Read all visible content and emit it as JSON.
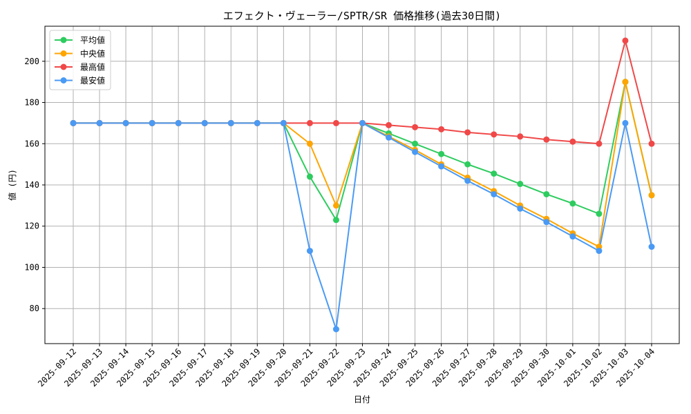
{
  "chart_data": {
    "type": "line",
    "title": "エフェクト・ヴェーラー/SPTR/SR 価格推移(過去30日間)",
    "xlabel": "日付",
    "ylabel": "値 (円)",
    "ylim": [
      63,
      217
    ],
    "yticks": [
      80,
      100,
      120,
      140,
      160,
      180,
      200
    ],
    "grid": true,
    "legend_position": "top-left",
    "categories": [
      "2025-09-12",
      "2025-09-13",
      "2025-09-14",
      "2025-09-15",
      "2025-09-16",
      "2025-09-17",
      "2025-09-18",
      "2025-09-19",
      "2025-09-20",
      "2025-09-21",
      "2025-09-22",
      "2025-09-23",
      "2025-09-24",
      "2025-09-25",
      "2025-09-26",
      "2025-09-27",
      "2025-09-28",
      "2025-09-29",
      "2025-09-30",
      "2025-10-01",
      "2025-10-02",
      "2025-10-03",
      "2025-10-04"
    ],
    "series": [
      {
        "name": "平均値",
        "color": "#2ecc5f",
        "values": [
          170,
          170,
          170,
          170,
          170,
          170,
          170,
          170,
          170,
          144,
          123,
          170,
          165,
          160,
          155,
          150,
          145.5,
          140.5,
          135.5,
          131,
          126,
          190,
          135
        ]
      },
      {
        "name": "中央値",
        "color": "#ffa500",
        "values": [
          170,
          170,
          170,
          170,
          170,
          170,
          170,
          170,
          170,
          160,
          130,
          170,
          163.5,
          157,
          150,
          143.5,
          137,
          130,
          123.5,
          116.5,
          110,
          190,
          135
        ]
      },
      {
        "name": "最高値",
        "color": "#f04848",
        "values": [
          170,
          170,
          170,
          170,
          170,
          170,
          170,
          170,
          170,
          170,
          170,
          170,
          169,
          168,
          167,
          165.5,
          164.5,
          163.5,
          162,
          161,
          160,
          210,
          160
        ]
      },
      {
        "name": "最安値",
        "color": "#4a9af5",
        "values": [
          170,
          170,
          170,
          170,
          170,
          170,
          170,
          170,
          170,
          108,
          70,
          170,
          163,
          156,
          149,
          142,
          135.5,
          128.5,
          122,
          115,
          108,
          170,
          110
        ]
      }
    ]
  }
}
